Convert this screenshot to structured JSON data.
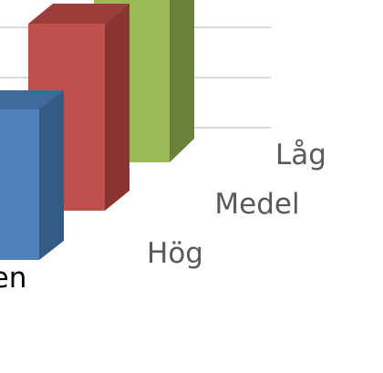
{
  "chart_data": {
    "type": "bar",
    "variant": "3d-column",
    "visible_category_fragment": "en",
    "series": [
      {
        "name": "Låg",
        "color": "#9BBB59",
        "side_color": "#6A813C",
        "top_color": "#7E9A46"
      },
      {
        "name": "Medel",
        "color": "#C0504D",
        "side_color": "#8A3532",
        "top_color": "#9B3D3A"
      },
      {
        "name": "Hög",
        "color": "#4F81BD",
        "side_color": "#345A86",
        "top_color": "#3F6A9C"
      }
    ],
    "grid": true,
    "cropped": true
  }
}
